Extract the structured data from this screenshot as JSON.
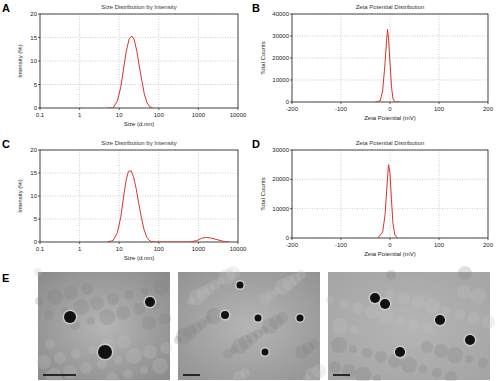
{
  "chart_data": [
    {
      "type": "line",
      "panel_label": "A",
      "title": "Size Distribution by Intensity",
      "x_label": "Size (d.nm)",
      "y_label": "Intensity (%)",
      "log": "x",
      "grid": true,
      "color": "#d9342b",
      "x": [
        5,
        7,
        9,
        11,
        13,
        15,
        18,
        21,
        24,
        28,
        32,
        37,
        43,
        50,
        58,
        70
      ],
      "values": [
        0,
        0,
        1.5,
        4.5,
        8.5,
        12,
        14.8,
        15.3,
        14.5,
        12,
        9,
        6,
        3,
        1.2,
        0.3,
        0
      ],
      "xlim": [
        0.1,
        10000
      ],
      "xticks": [
        0.1,
        1,
        10,
        100,
        1000,
        10000
      ],
      "ylim": [
        0,
        20
      ],
      "yticks": [
        0,
        5,
        10,
        15,
        20
      ]
    },
    {
      "type": "line",
      "panel_label": "B",
      "title": "Zeta Potential Distribution",
      "x_label": "Zeta Potential (mV)",
      "y_label": "Total Counts",
      "grid": true,
      "color": "#d9342b",
      "x": [
        -30,
        -20,
        -15,
        -10,
        -7,
        -5,
        -3,
        0,
        3,
        6,
        10,
        20
      ],
      "values": [
        0,
        500,
        5000,
        18000,
        28000,
        33000,
        29000,
        18000,
        7000,
        1500,
        0,
        0
      ],
      "xlim": [
        -200,
        200
      ],
      "xticks": [
        -200,
        -100,
        0,
        100,
        200
      ],
      "ylim": [
        0,
        40000
      ],
      "yticks": [
        0,
        10000,
        20000,
        30000,
        40000
      ]
    },
    {
      "type": "line",
      "panel_label": "C",
      "title": "Size Distribution by Intensity",
      "x_label": "Size (d.nm)",
      "y_label": "Intensity (%)",
      "log": "x",
      "grid": true,
      "color": "#d9342b",
      "x": [
        5,
        7,
        9,
        11,
        13,
        15,
        17,
        20,
        23,
        27,
        31,
        36,
        42,
        50,
        60,
        75,
        600,
        900,
        1200,
        1500,
        2000,
        3000,
        4500,
        6000
      ],
      "values": [
        0,
        0.3,
        2,
        5.5,
        10,
        13.5,
        15.3,
        15.5,
        14.2,
        11.5,
        8.5,
        5.5,
        2.8,
        1,
        0.2,
        0,
        0,
        0.3,
        0.8,
        1,
        0.9,
        0.5,
        0.1,
        0
      ],
      "xlim": [
        0.1,
        10000
      ],
      "xticks": [
        0.1,
        1,
        10,
        100,
        1000,
        10000
      ],
      "ylim": [
        0,
        20
      ],
      "yticks": [
        0,
        5,
        10,
        15,
        20
      ]
    },
    {
      "type": "line",
      "panel_label": "D",
      "title": "Zeta Potential Distribution",
      "x_label": "Zeta Potential (mV)",
      "y_label": "Total Counts",
      "grid": true,
      "color": "#d9342b",
      "x": [
        -25,
        -15,
        -10,
        -6,
        -3,
        0,
        3,
        6,
        10,
        15
      ],
      "values": [
        0,
        2000,
        8000,
        18000,
        25000,
        22000,
        13000,
        5000,
        1000,
        0
      ],
      "xlim": [
        -200,
        200
      ],
      "xticks": [
        -200,
        -100,
        0,
        100,
        200
      ],
      "ylim": [
        0,
        30000
      ],
      "yticks": [
        0,
        10000,
        20000,
        30000
      ]
    }
  ],
  "images": {
    "panel_label": "E"
  }
}
